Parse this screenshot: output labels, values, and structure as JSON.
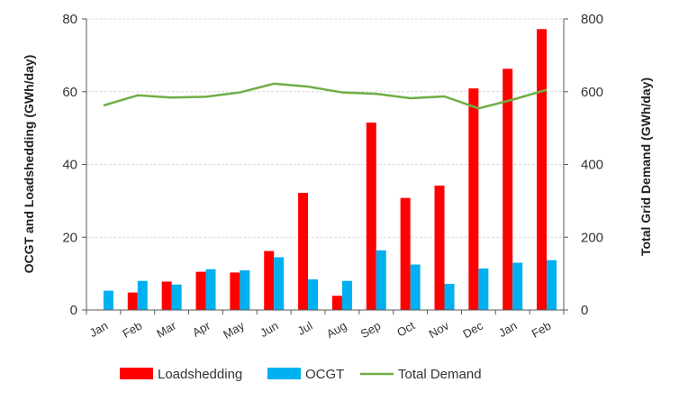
{
  "chart_data": {
    "type": "bar",
    "categories": [
      "Jan",
      "Feb",
      "Mar",
      "Apr",
      "May",
      "Jun",
      "Jul",
      "Aug",
      "Sep",
      "Oct",
      "Nov",
      "Dec",
      "Jan",
      "Feb"
    ],
    "series": [
      {
        "name": "Loadshedding",
        "type": "bar",
        "axis": "left",
        "color": "#ff0000",
        "values": [
          0,
          4.8,
          7.8,
          10.5,
          10.3,
          16.2,
          32.2,
          3.9,
          51.5,
          30.8,
          34.2,
          60.9,
          66.3,
          77.2
        ]
      },
      {
        "name": "OCGT",
        "type": "bar",
        "axis": "left",
        "color": "#00b0f0",
        "values": [
          5.3,
          8.0,
          7.0,
          11.2,
          10.9,
          14.5,
          8.4,
          8.0,
          16.4,
          12.5,
          7.2,
          11.4,
          13.0,
          13.7
        ]
      },
      {
        "name": "Total Demand",
        "type": "line",
        "axis": "right",
        "color": "#70ad47",
        "values": [
          562,
          590,
          584,
          586,
          598,
          622,
          614,
          598,
          594,
          582,
          587,
          554,
          578,
          605
        ]
      }
    ],
    "ylabel": "OCGT and Loadshedding (GWh/day)",
    "y2label": "Total Grid Demand (GWh/day)",
    "ylim": [
      0,
      80
    ],
    "y2lim": [
      0,
      800
    ],
    "yticks": [
      "0",
      "20",
      "40",
      "60",
      "80"
    ],
    "y2ticks": [
      "0",
      "200",
      "400",
      "600",
      "800"
    ],
    "grid": true,
    "legend_position": "bottom"
  }
}
